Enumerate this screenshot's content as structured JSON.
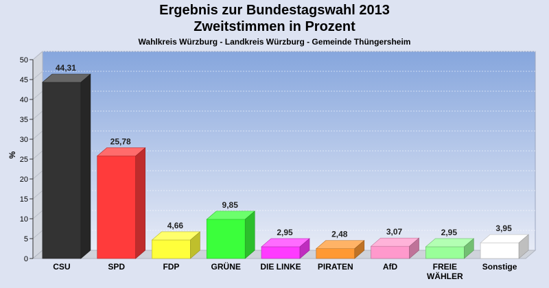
{
  "chart_data": {
    "type": "bar",
    "title": "Ergebnis zur Bundestagswahl 2013",
    "title_line2": "Zweitstimmen in Prozent",
    "subtitle": "Wahlkreis Würzburg - Landkreis Würzburg - Gemeinde Thüngersheim",
    "ylabel": "%",
    "ylim": [
      0,
      50
    ],
    "yticks": [
      0,
      5,
      10,
      15,
      20,
      25,
      30,
      35,
      40,
      45,
      50
    ],
    "grid": true,
    "categories": [
      "CSU",
      "SPD",
      "FDP",
      "GRÜNE",
      "DIE LINKE",
      "PIRATEN",
      "AfD",
      "FREIE WÄHLER",
      "Sonstige"
    ],
    "category_lines": [
      [
        "CSU"
      ],
      [
        "SPD"
      ],
      [
        "FDP"
      ],
      [
        "GRÜNE"
      ],
      [
        "DIE LINKE"
      ],
      [
        "PIRATEN"
      ],
      [
        "AfD"
      ],
      [
        "FREIE",
        "WÄHLER"
      ],
      [
        "Sonstige"
      ]
    ],
    "values": [
      44.31,
      25.78,
      4.66,
      9.85,
      2.95,
      2.48,
      3.07,
      2.95,
      3.95
    ],
    "value_labels": [
      "44,31",
      "25,78",
      "4,66",
      "9,85",
      "2,95",
      "2,48",
      "3,07",
      "2,95",
      "3,95"
    ],
    "colors": [
      "#333333",
      "#ff3b3b",
      "#ffff3b",
      "#3bff3b",
      "#ff3bff",
      "#ff9933",
      "#ff99cc",
      "#99ff99",
      "#ffffff"
    ]
  }
}
